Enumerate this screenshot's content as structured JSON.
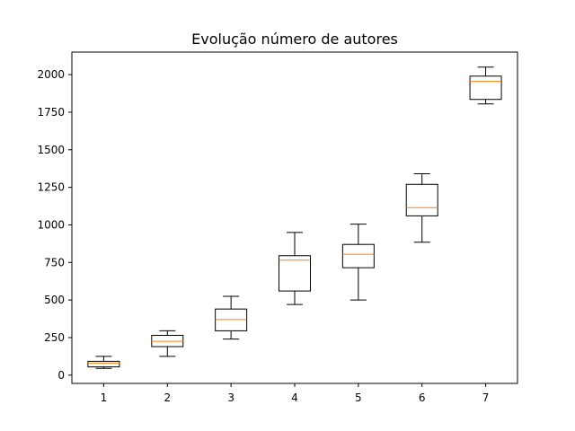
{
  "chart_data": {
    "type": "box",
    "title": "Evolução número de autores",
    "xlabel": "",
    "ylabel": "",
    "categories": [
      "1",
      "2",
      "3",
      "4",
      "5",
      "6",
      "7"
    ],
    "boxes": [
      {
        "whisker_low": 45,
        "q1": 55,
        "median": 80,
        "q3": 92,
        "whisker_high": 125
      },
      {
        "whisker_low": 125,
        "q1": 190,
        "median": 225,
        "q3": 265,
        "whisker_high": 295
      },
      {
        "whisker_low": 240,
        "q1": 295,
        "median": 370,
        "q3": 440,
        "whisker_high": 525
      },
      {
        "whisker_low": 470,
        "q1": 560,
        "median": 765,
        "q3": 795,
        "whisker_high": 950
      },
      {
        "whisker_low": 500,
        "q1": 715,
        "median": 805,
        "q3": 870,
        "whisker_high": 1005
      },
      {
        "whisker_low": 885,
        "q1": 1060,
        "median": 1115,
        "q3": 1270,
        "whisker_high": 1340
      },
      {
        "whisker_low": 1805,
        "q1": 1835,
        "median": 1955,
        "q3": 1990,
        "whisker_high": 2050
      }
    ],
    "y_ticks": [
      0,
      250,
      500,
      750,
      1000,
      1250,
      1500,
      1750,
      2000
    ],
    "ylim": [
      -55,
      2150
    ],
    "xlim": [
      0.5,
      7.5
    ],
    "grid": false,
    "colors": {
      "box": "#000000",
      "median": "#ff7f0e"
    }
  }
}
